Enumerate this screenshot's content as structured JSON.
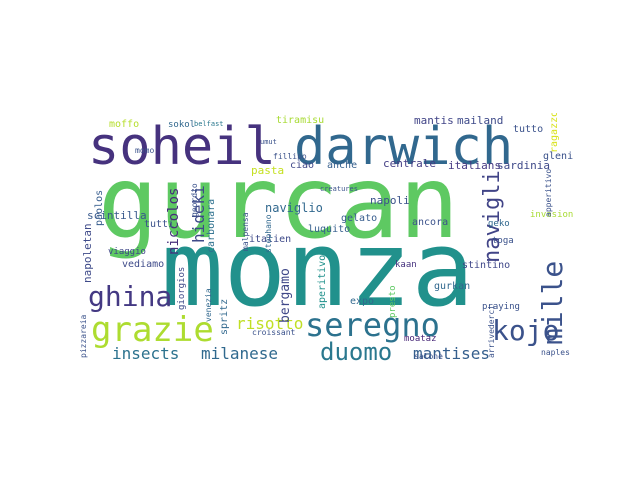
{
  "wordcloud": {
    "words": {
      "gurcan": "gurcan",
      "monza": "monza",
      "soheil": "soheil",
      "darwich": "darwich",
      "seregno": "seregno",
      "grazie": "grazie",
      "ghina": "ghina",
      "kojo": "kojo",
      "duomo": "duomo",
      "mille": "mille",
      "navigli": "navigli",
      "insects": "insects",
      "milanese": "milanese",
      "mantises": "mantises",
      "risotto": "risotto",
      "hideki": "hideki",
      "niccolos": "niccolos",
      "bergamo": "bergamo",
      "naviglio": "naviglio",
      "sardinia": "sardinia",
      "italians": "italians",
      "centrale": "centrale",
      "tiramisu": "tiramisu",
      "mailand": "mailand",
      "mantis": "mantis",
      "moffo": "moffo",
      "sokol": "sokol",
      "belfast": "belfast",
      "scintilla": "scintilla",
      "napoletan": "napoletan",
      "paolos": "paolos",
      "vediamo": "vediamo",
      "viaggio": "viaggio",
      "tutti": "tutti",
      "carbonara": "carbonara",
      "ciao": "ciao",
      "anche": "anche",
      "napoli": "napoli",
      "ancora": "ancora",
      "gelato": "gelato",
      "luquito": "luquito",
      "italien": "italien",
      "expo": "expo",
      "stintino": "stintino",
      "kaan": "kaan",
      "gurkan": "gurkan",
      "naples": "naples",
      "aperitivo": "aperitivo",
      "moataz": "moataz",
      "salone": "salone",
      "spritz": "spritz",
      "giorgios": "giorgios",
      "geko": "geko",
      "toga": "toga",
      "tutto": "tutto",
      "gleni": "gleni",
      "invasion": "invasion",
      "praying": "praying",
      "presto": "presto",
      "pasta": "pasta",
      "apperitivo": "apperitivo",
      "ragazzo": "ragazzo",
      "malpensa": "malpensa",
      "stephano": "stephano",
      "geordio": "geordio",
      "pizzareia": "pizzareia",
      "arrivederci": "arrivederci",
      "croissant": "croissant",
      "venezia": "venezia",
      "creatures": "creatures",
      "fillipo": "fillipo",
      "umut": "umut",
      "momo": "momo"
    }
  }
}
